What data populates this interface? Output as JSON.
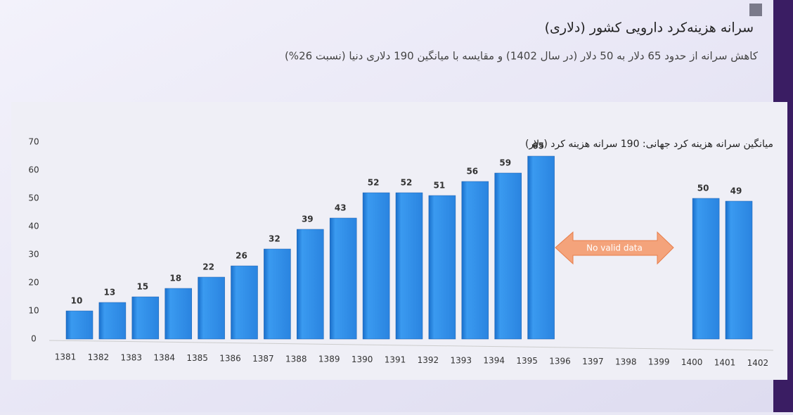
{
  "title": "سرانه هزینه‌کرد دارویی کشور (دلاری)",
  "subtitle": "کاهش سرانه از حدود 65 دلار به 50 دلار (در سال 1402) و مقایسه با میانگین 190 دلاری دنیا (نسبت 26%)",
  "chart_data": {
    "type": "bar",
    "annotation": "میانگین سرانه هزینه کرد جهانی: 190 سرانه هزینه کرد (دلار)",
    "no_data_label": "No valid data",
    "categories": [
      "1381",
      "1382",
      "1383",
      "1384",
      "1385",
      "1386",
      "1387",
      "1388",
      "1389",
      "1390",
      "1391",
      "1392",
      "1393",
      "1394",
      "1395",
      "1396",
      "1397",
      "1398",
      "1399",
      "1400",
      "1401",
      "1402"
    ],
    "values": [
      10,
      13,
      15,
      18,
      22,
      26,
      32,
      39,
      43,
      52,
      52,
      51,
      56,
      59,
      65,
      null,
      null,
      null,
      null,
      50,
      49,
      null
    ],
    "color": "#2f8be6",
    "ylim": [
      0,
      70
    ],
    "yticks": [
      0,
      10,
      20,
      30,
      40,
      50,
      60,
      70
    ],
    "grid": false
  }
}
